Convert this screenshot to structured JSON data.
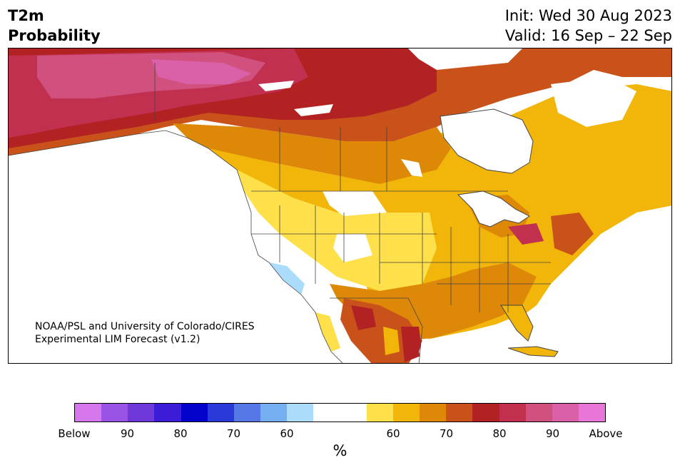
{
  "header": {
    "variable": "T2m",
    "product": "Probability",
    "init": "Init: Wed 30 Aug 2023",
    "valid": "Valid: 16 Sep – 22 Sep"
  },
  "credit": {
    "line1": "NOAA/PSL and University of Colorado/CIRES",
    "line2": "Experimental LIM Forecast (v1.2)"
  },
  "colorbar": {
    "unit": "%",
    "colors": [
      "#d676ec",
      "#9a52e4",
      "#6d37da",
      "#3c1cd6",
      "#0202cc",
      "#2a3ad8",
      "#5678e6",
      "#74b0f0",
      "#acdcfc",
      "#ffffff",
      "#ffffff",
      "#fee04a",
      "#f2b60a",
      "#de8808",
      "#c8521a",
      "#b22222",
      "#c23050",
      "#d0507e",
      "#da60a8",
      "#e876d8"
    ],
    "tick_labels": [
      "Below",
      "90",
      "80",
      "70",
      "60",
      "60",
      "70",
      "80",
      "90",
      "Above"
    ]
  },
  "map": {
    "region": "North America",
    "category_colors": {
      "above_50": "#fee04a",
      "above_60": "#f2b60a",
      "above_70": "#de8808",
      "above_75": "#c8521a",
      "above_80": "#b22222",
      "above_85": "#c23050",
      "above_90": "#d0507e",
      "above_95": "#da60a8",
      "below_55": "#acdcfc",
      "neutral": "#ffffff",
      "borders": "#444444"
    }
  }
}
